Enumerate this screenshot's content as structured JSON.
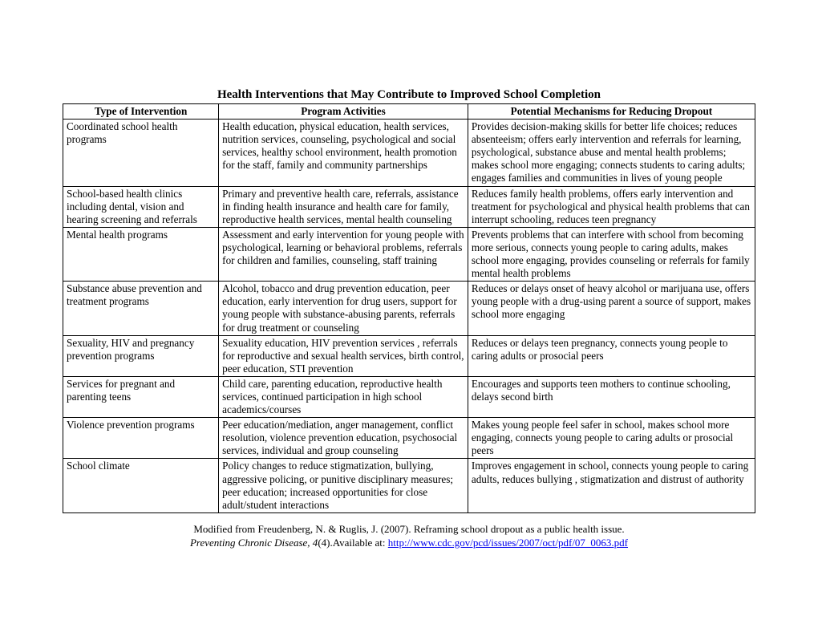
{
  "title": "Health Interventions that May Contribute to Improved School Completion",
  "headers": {
    "col1": "Type of Intervention",
    "col2": "Program Activities",
    "col3": "Potential  Mechanisms for Reducing Dropout"
  },
  "rows": [
    {
      "c1": "Coordinated school health programs",
      "c2": "Health education, physical education, health services, nutrition services, counseling, psychological and social services, healthy school environment, health promotion for the staff,  family and community partnerships",
      "c3": "Provides decision-making skills for better life choices; reduces absenteeism; offers early intervention and referrals for learning, psychological, substance abuse and  mental health problems; makes school more engaging; connects students to caring adults; engages families and communities in lives of young people"
    },
    {
      "c1": "School-based health clinics including dental, vision and hearing screening and referrals",
      "c2": "Primary and preventive health care, referrals, assistance in finding health insurance and health care for family, reproductive health services, mental health counseling",
      "c3": "Reduces family health problems, offers early intervention and treatment for psychological and physical health problems that can interrupt schooling, reduces teen pregnancy"
    },
    {
      "c1": "Mental health programs",
      "c2": "Assessment and early intervention for young people with psychological, learning or behavioral problems, referrals for children and families, counseling, staff training",
      "c3": "Prevents problems that can interfere with school from becoming more serious, connects young people to caring adults, makes school more engaging, provides counseling or referrals for family mental health problems"
    },
    {
      "c1": "Substance abuse prevention and treatment programs",
      "c2": "Alcohol, tobacco and drug prevention education, peer education, early intervention for drug users, support for young people with substance-abusing parents, referrals for drug treatment or counseling",
      "c3": "Reduces or delays onset of heavy alcohol or marijuana use, offers young people with a drug-using parent a source of support, makes school more engaging"
    },
    {
      "c1": "Sexuality, HIV and pregnancy prevention programs",
      "c2": "Sexuality education, HIV prevention services , referrals for reproductive and sexual health services, birth control, peer education, STI prevention",
      "c3": "Reduces or delays teen pregnancy, connects young people to caring adults or prosocial peers"
    },
    {
      "c1": "Services for pregnant and parenting teens",
      "c2": "Child care, parenting education, reproductive health services, continued participation in high school academics/courses",
      "c3": "Encourages and supports teen mothers to continue schooling, delays second birth"
    },
    {
      "c1": "Violence prevention programs",
      "c2": "Peer education/mediation, anger management, conflict resolution, violence prevention education, psychosocial services, individual and group counseling",
      "c3": "Makes young people feel safer in school, makes school more engaging, connects young people to caring adults or prosocial peers"
    },
    {
      "c1": "School climate",
      "c2": "Policy changes to reduce stigmatization, bullying, aggressive policing, or punitive disciplinary measures; peer education; increased opportunities for close adult/student  interactions",
      "c3": "Improves engagement in school, connects young people to caring adults, reduces bullying , stigmatization and distrust of authority"
    }
  ],
  "citation": {
    "line1": "Modified from Freudenberg, N. & Ruglis, J. (2007). Reframing school dropout as a public health issue.",
    "journal": "Preventing Chronic Disease, 4",
    "issue": "(4).Available at:  ",
    "url": "http://www.cdc.gov/pcd/issues/2007/oct/pdf/07_0063.pdf"
  }
}
